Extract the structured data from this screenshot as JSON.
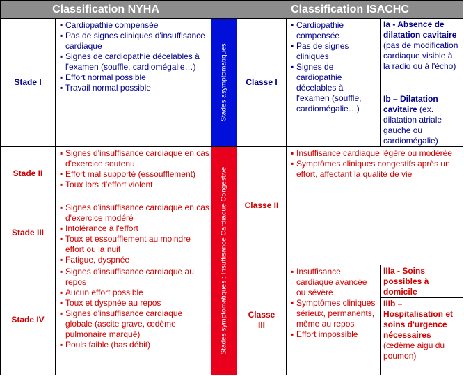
{
  "header": {
    "nyha": "Classification NYHA",
    "isachc": "Classification ISACHC"
  },
  "bands": [
    "Stades asymptomatiques",
    "Stades symptomatiques : Insuffisance Cardiaque Congestive"
  ],
  "nyha": [
    {
      "label": "Stade I",
      "items": [
        "Cardiopathie compensée",
        "Pas de signes cliniques d'insuffisance cardiaque",
        "Signes de cardiopathie décelables à l'examen (souffle, cardiomégalie…)",
        "Effort normal possible",
        "Travail normal possible"
      ]
    },
    {
      "label": "Stade II",
      "items": [
        "Signes d'insuffisance cardiaque en cas d'exercice soutenu",
        "Effort mal supporté (essoufflement)",
        "Toux lors d'effort violent"
      ]
    },
    {
      "label": "Stade III",
      "items": [
        "Signes d'insuffisance cardiaque en cas d'exercice modéré",
        "Intolérance à l'effort",
        "Toux et essoufflement au moindre effort ou la nuit",
        "Fatigue, dyspnée"
      ]
    },
    {
      "label": "Stade IV",
      "items": [
        "Signes d'insuffisance cardiaque au repos",
        "Aucun effort possible",
        "Toux et dyspnée au repos",
        "Signes d'insuffisance cardiaque globale (ascite grave, œdème pulmonaire marqué)",
        "Pouls faible (bas débit)"
      ]
    }
  ],
  "isachc": [
    {
      "label": "Classe I",
      "items": [
        "Cardiopathie compensée",
        "Pas de signes cliniques",
        "Signes de cardiopathie décelables à l'examen (souffle, cardiomégalie…)"
      ],
      "sub": [
        {
          "title": "Ia - Absence de dilatation cavitaire",
          "text": "(pas de modification cardiaque visible à la radio ou à l'écho)"
        },
        {
          "title": "Ib – Dilatation cavitaire",
          "text": "(ex. dilatation atriale gauche ou cardiomégalie)"
        }
      ]
    },
    {
      "label": "Classe II",
      "items": [
        "Insuffisance cardiaque légère ou modérée",
        "Symptômes cliniques congestifs après un effort, affectant la qualité de vie"
      ]
    },
    {
      "label": "Classe III",
      "items": [
        "Insuffisance cardiaque avancée ou sévère",
        "Symptômes cliniques sérieux, permanents, même au repos",
        "Effort impossible"
      ],
      "sub": [
        {
          "title": "IIIa - Soins possibles à domicile"
        },
        {
          "title": "IIIb – Hospitalisation et soins d'urgence nécessaires",
          "text": "(œdème aigu du poumon)"
        }
      ]
    }
  ]
}
